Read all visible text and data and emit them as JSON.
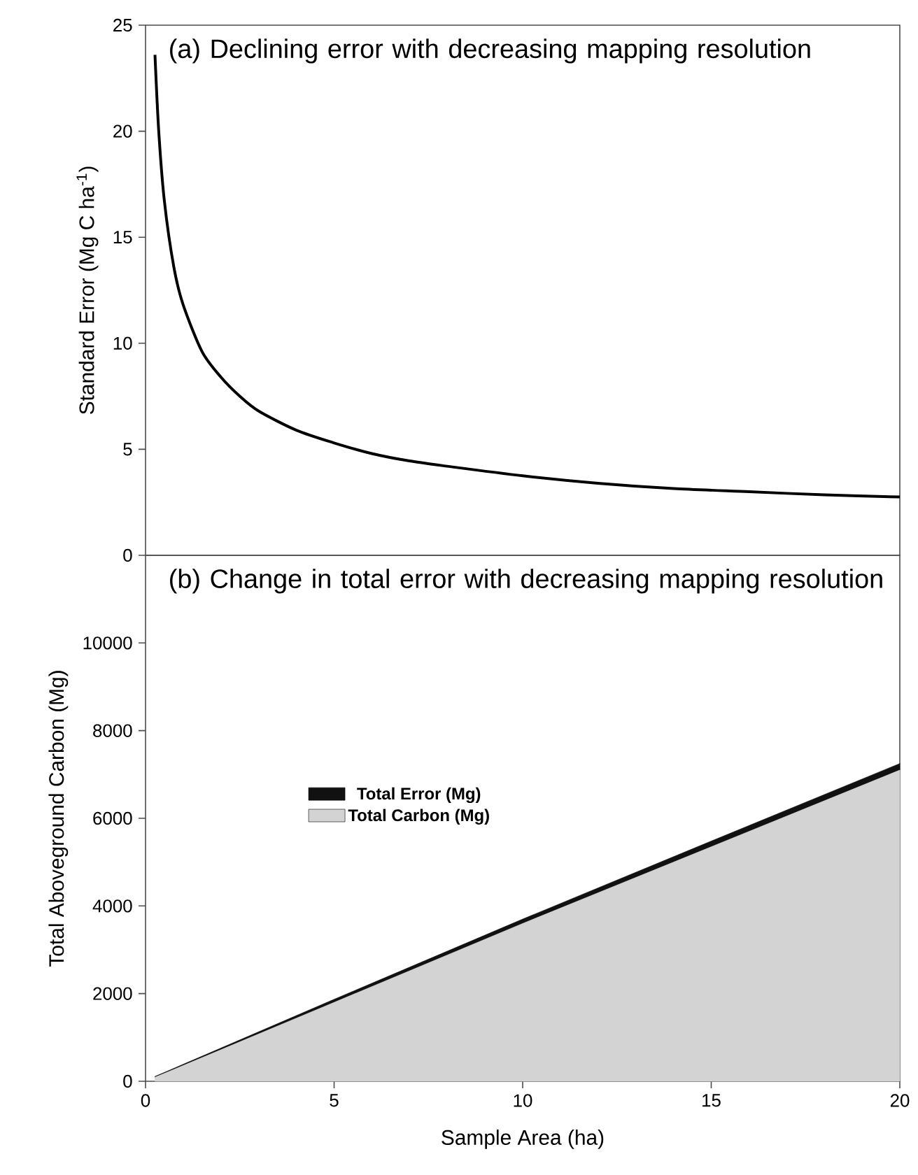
{
  "chart_data": [
    {
      "type": "line",
      "title": "(a) Declining error with decreasing mapping resolution",
      "ylabel": "Standard Error (Mg C ha$^{-1}$)",
      "color": "#000000",
      "x": [
        0.25,
        0.35,
        0.5,
        0.75,
        1,
        1.5,
        2,
        2.5,
        3,
        4,
        5,
        6,
        7,
        8,
        10,
        12,
        14,
        16,
        18,
        20
      ],
      "values": [
        23.6,
        20,
        16.7,
        13.6,
        11.8,
        9.6,
        8.4,
        7.5,
        6.8,
        5.9,
        5.3,
        4.8,
        4.45,
        4.2,
        3.75,
        3.4,
        3.15,
        3.0,
        2.85,
        2.75
      ],
      "xlim": [
        0,
        20
      ],
      "ylim": [
        0,
        25
      ],
      "yticks": [
        0,
        5,
        10,
        15,
        20,
        25
      ],
      "tick_labels": "y"
    },
    {
      "type": "area",
      "stacked": true,
      "title": "(b) Change in total error with decreasing mapping resolution",
      "xlabel": "Sample Area (ha)",
      "ylabel": "Total Aboveground Carbon (Mg)",
      "x": [
        0.25,
        5,
        10,
        15,
        20
      ],
      "series": [
        {
          "name": "Total Carbon (Mg)",
          "color": "#d3d3d3",
          "values": [
            90,
            1800,
            3600,
            5350,
            7100
          ]
        },
        {
          "name": "Total Error (Mg)",
          "color": "#111111",
          "values": [
            20,
            70,
            100,
            130,
            150
          ]
        }
      ],
      "xlim": [
        0,
        20
      ],
      "ylim": [
        0,
        12000
      ],
      "xticks": [
        0,
        5,
        10,
        15,
        20
      ],
      "yticks": [
        0,
        2000,
        4000,
        6000,
        8000,
        10000
      ],
      "legend": "left"
    }
  ]
}
